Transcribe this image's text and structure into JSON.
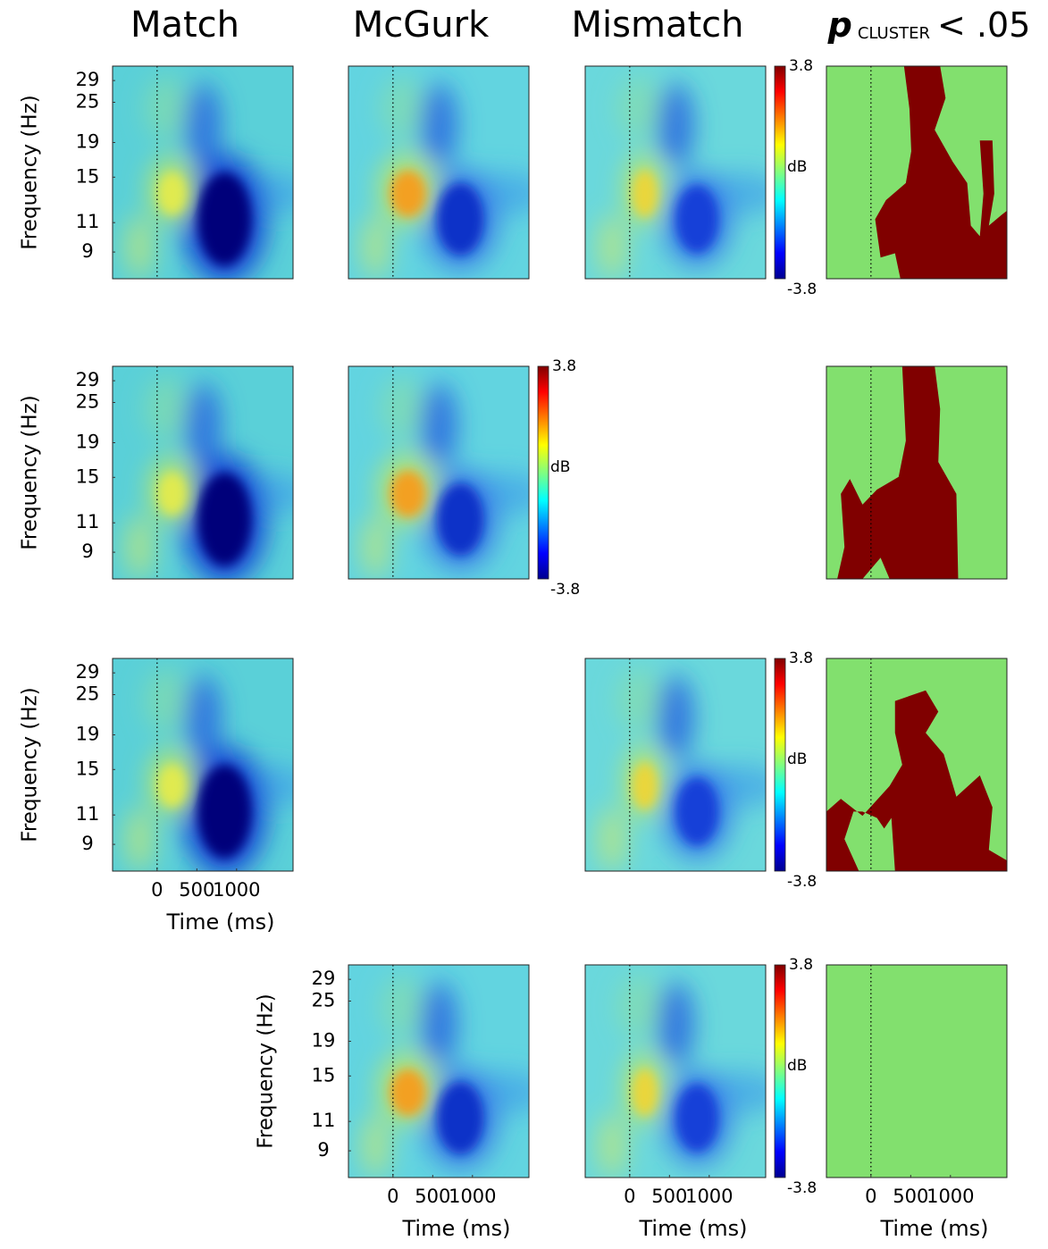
{
  "chart_data": {
    "type": "tf-grid",
    "columns": [
      "Match",
      "McGurk",
      "Mismatch"
    ],
    "cluster_title": {
      "p": "p",
      "sub": "CLUSTER",
      "rest": "< .05"
    },
    "ylabel": "Frequency (Hz)",
    "xlabel": "Time (ms)",
    "yscale": "log",
    "ylim": [
      7.5,
      32
    ],
    "yticks": [
      29,
      25,
      19,
      15,
      11,
      9
    ],
    "xlim": [
      -560,
      1710
    ],
    "xticks": [
      0,
      500,
      1000
    ],
    "colorbar_label": "dB",
    "clim": [
      -3.8,
      3.8
    ],
    "mask_colors": {
      "background": "#82e06e",
      "significant": "#800000"
    },
    "rows": [
      {
        "show": [
          true,
          true,
          true,
          true
        ],
        "xaxis": [
          false,
          false,
          false,
          false
        ],
        "colorbar": 2
      },
      {
        "show": [
          true,
          true,
          false,
          true
        ],
        "xaxis": [
          false,
          false,
          false,
          false
        ],
        "colorbar": 1
      },
      {
        "show": [
          true,
          false,
          true,
          true
        ],
        "xaxis": [
          true,
          false,
          false,
          false
        ],
        "colorbar": 2
      },
      {
        "show": [
          false,
          true,
          true,
          true
        ],
        "xaxis": [
          false,
          true,
          true,
          true
        ],
        "colorbar": 2
      }
    ]
  }
}
